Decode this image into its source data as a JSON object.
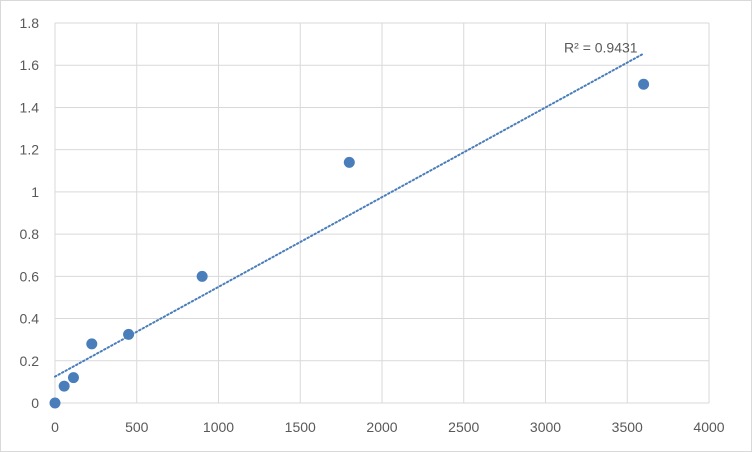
{
  "chart_data": {
    "type": "scatter",
    "title": "",
    "xlabel": "",
    "ylabel": "",
    "xlim": [
      0,
      4000
    ],
    "ylim": [
      0,
      1.8
    ],
    "x_ticks": [
      0,
      500,
      1000,
      1500,
      2000,
      2500,
      3000,
      3500,
      4000
    ],
    "y_ticks": [
      0,
      0.2,
      0.4,
      0.6,
      0.8,
      1,
      1.2,
      1.4,
      1.6,
      1.8
    ],
    "x_tick_labels": [
      "0",
      "500",
      "1000",
      "1500",
      "2000",
      "2500",
      "3000",
      "3500",
      "4000"
    ],
    "y_tick_labels": [
      "0",
      "0.2",
      "0.4",
      "0.6",
      "0.8",
      "1",
      "1.2",
      "1.4",
      "1.6",
      "1.8"
    ],
    "grid": true,
    "legend": "none",
    "series": [
      {
        "points": [
          {
            "x": 0,
            "y": 0
          },
          {
            "x": 56,
            "y": 0.08
          },
          {
            "x": 113,
            "y": 0.12
          },
          {
            "x": 225,
            "y": 0.28
          },
          {
            "x": 450,
            "y": 0.325
          },
          {
            "x": 900,
            "y": 0.6
          },
          {
            "x": 1800,
            "y": 1.14
          },
          {
            "x": 3600,
            "y": 1.51
          }
        ],
        "color": "#4a7ebb"
      }
    ],
    "trendline": {
      "type": "linear",
      "style": "dotted",
      "color": "#4a7ebb",
      "x_start": 0,
      "y_start": 0.125,
      "x_end": 3600,
      "y_end": 1.655,
      "label": "R² = 0.9431"
    },
    "colors": {
      "grid": "#d9d9d9",
      "tick_text": "#595959",
      "marker": "#4a7ebb"
    }
  }
}
